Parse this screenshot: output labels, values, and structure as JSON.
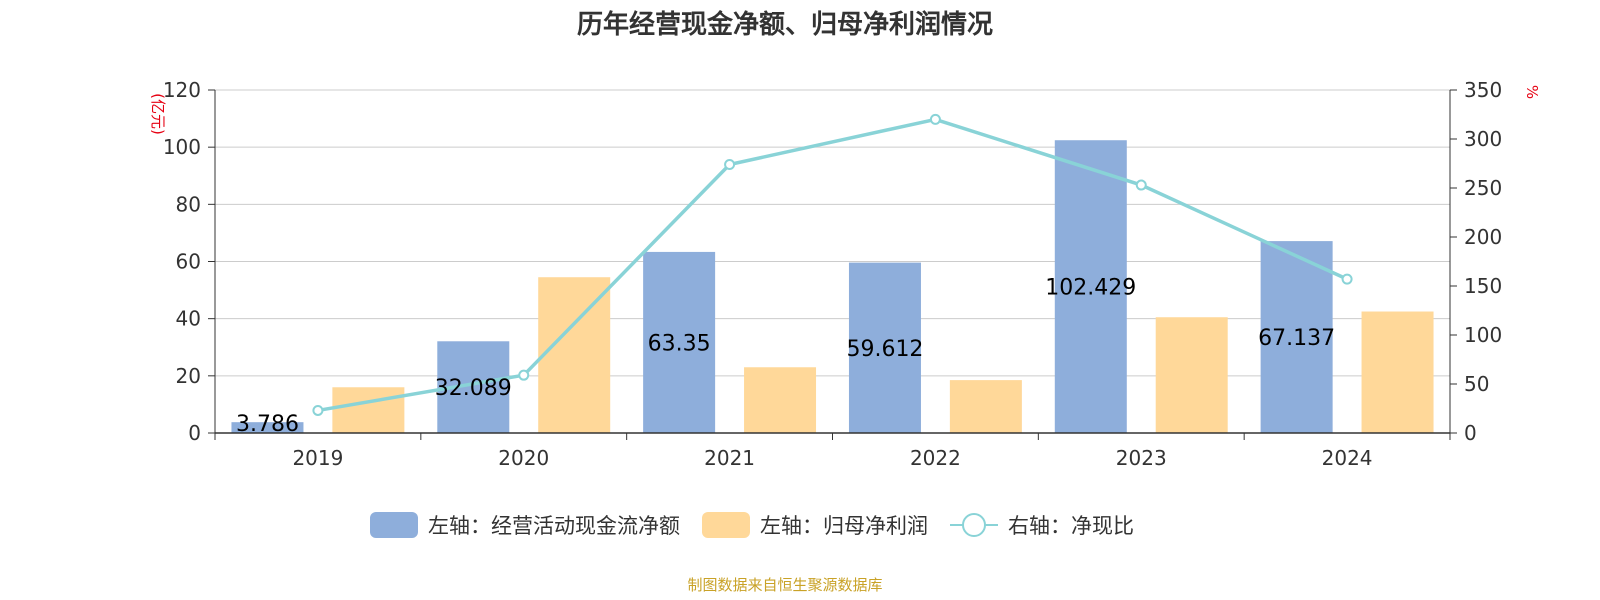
{
  "chart_data": {
    "type": "bar",
    "title": "历年经营现金净额、归母净利润情况",
    "categories": [
      "2019",
      "2020",
      "2021",
      "2022",
      "2023",
      "2024"
    ],
    "series": [
      {
        "name": "左轴：经营活动现金流净额",
        "kind": "bar",
        "axis": "left",
        "color": "#8eaedb",
        "values": [
          3.786,
          32.089,
          63.35,
          59.612,
          102.429,
          67.137
        ],
        "labels": [
          "3.786",
          "32.089",
          "63.35",
          "59.612",
          "102.429",
          "67.137"
        ]
      },
      {
        "name": "左轴：归母净利润",
        "kind": "bar",
        "axis": "left",
        "color": "#ffd899",
        "values": [
          16,
          54.5,
          23,
          18.5,
          40.5,
          42.5
        ]
      },
      {
        "name": "右轴：净现比",
        "kind": "line",
        "axis": "right",
        "color": "#89d3d7",
        "values": [
          23,
          59,
          274,
          320,
          253,
          157
        ]
      }
    ],
    "yLeft": {
      "unit": "(亿元)",
      "min": 0,
      "max": 120,
      "step": 20
    },
    "yRight": {
      "unit": "%",
      "min": 0,
      "max": 350,
      "step": 50
    },
    "legend_position": "bottom",
    "source": "制图数据来自恒生聚源数据库"
  }
}
